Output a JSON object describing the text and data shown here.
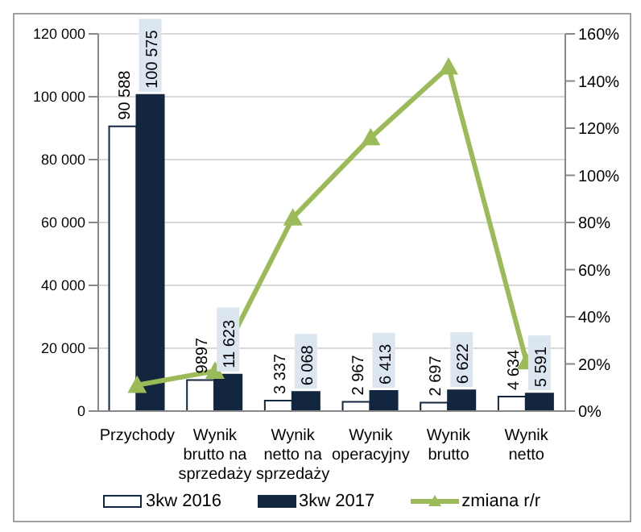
{
  "chart_data": {
    "type": "bar",
    "categories": [
      "Przychody",
      "Wynik brutto na sprzedaży",
      "Wynik netto na sprzedaży",
      "Wynik operacyjny",
      "Wynik brutto",
      "Wynik netto"
    ],
    "series": [
      {
        "name": "3kw 2016",
        "color": "#ffffff",
        "values": [
          90588,
          9897,
          3337,
          2967,
          2697,
          4634
        ],
        "value_labels": [
          "90 588",
          "9897",
          "3 337",
          "2 967",
          "2 697",
          "4 634"
        ]
      },
      {
        "name": "3kw 2017",
        "color": "#12263f",
        "values": [
          100575,
          11623,
          6068,
          6413,
          6622,
          5591
        ],
        "value_labels": [
          "100 575",
          "11 623",
          "6 068",
          "6 413",
          "6 622",
          "5 591"
        ]
      },
      {
        "name": "zmiana r/r",
        "type": "line",
        "axis": "y2",
        "color": "#9bbb59",
        "marker": "triangle",
        "values": [
          11,
          17,
          82,
          116,
          146,
          21
        ]
      }
    ],
    "ylim": [
      0,
      120000
    ],
    "yticks": [
      {
        "value": 0,
        "label": "0"
      },
      {
        "value": 20000,
        "label": "20 000"
      },
      {
        "value": 40000,
        "label": "40 000"
      },
      {
        "value": 60000,
        "label": "60 000"
      },
      {
        "value": 80000,
        "label": "80 000"
      },
      {
        "value": 100000,
        "label": "100 000"
      },
      {
        "value": 120000,
        "label": "120 000"
      }
    ],
    "y2lim": [
      0,
      160
    ],
    "y2ticks": [
      {
        "value": 0,
        "label": "0%"
      },
      {
        "value": 20,
        "label": "20%"
      },
      {
        "value": 40,
        "label": "40%"
      },
      {
        "value": 60,
        "label": "60%"
      },
      {
        "value": 80,
        "label": "80%"
      },
      {
        "value": 100,
        "label": "100%"
      },
      {
        "value": 120,
        "label": "120%"
      },
      {
        "value": 140,
        "label": "140%"
      },
      {
        "value": 160,
        "label": "160%"
      }
    ],
    "grid": "y",
    "legend": "bottom"
  }
}
